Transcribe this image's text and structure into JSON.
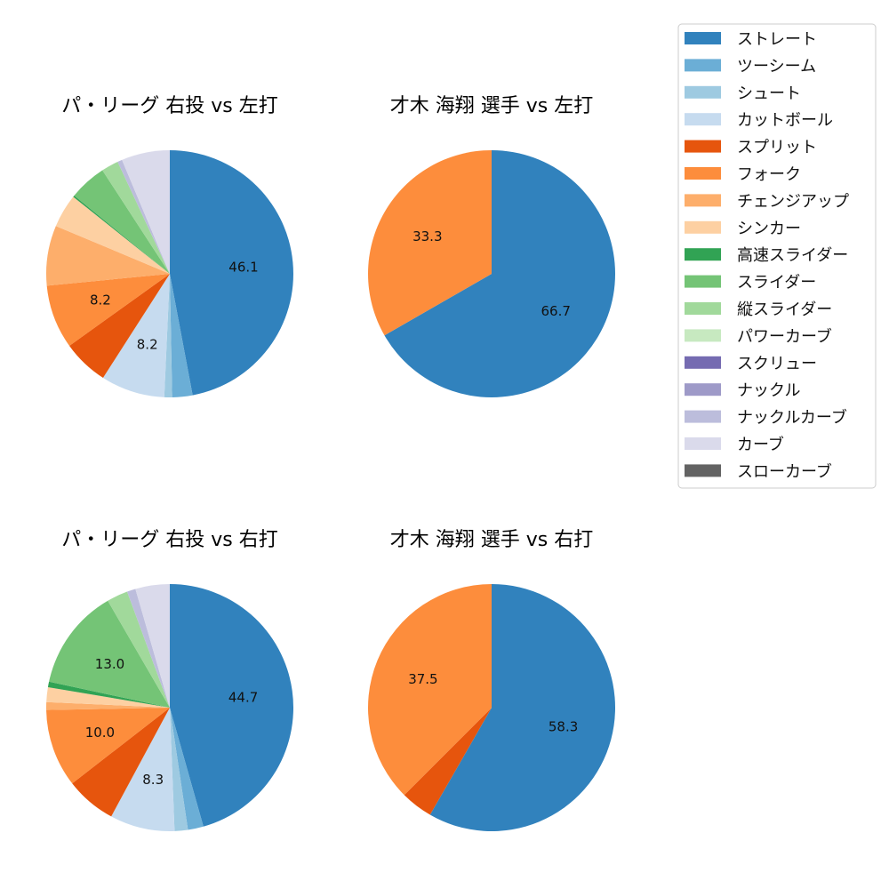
{
  "legend": {
    "items": [
      {
        "name": "ストレート",
        "color": "#3182bd"
      },
      {
        "name": "ツーシーム",
        "color": "#6baed6"
      },
      {
        "name": "シュート",
        "color": "#9ecae1"
      },
      {
        "name": "カットボール",
        "color": "#c6dbef"
      },
      {
        "name": "スプリット",
        "color": "#e6550d"
      },
      {
        "name": "フォーク",
        "color": "#fd8d3c"
      },
      {
        "name": "チェンジアップ",
        "color": "#fdae6b"
      },
      {
        "name": "シンカー",
        "color": "#fdd0a2"
      },
      {
        "name": "高速スライダー",
        "color": "#31a354"
      },
      {
        "name": "スライダー",
        "color": "#74c476"
      },
      {
        "name": "縦スライダー",
        "color": "#a1d99b"
      },
      {
        "name": "パワーカーブ",
        "color": "#c7e9c0"
      },
      {
        "name": "スクリュー",
        "color": "#756bb1"
      },
      {
        "name": "ナックル",
        "color": "#9e9ac8"
      },
      {
        "name": "ナックルカーブ",
        "color": "#bcbddc"
      },
      {
        "name": "カーブ",
        "color": "#dadaeb"
      },
      {
        "name": "スローカーブ",
        "color": "#636363"
      }
    ]
  },
  "chart_data": [
    {
      "type": "pie",
      "title": "パ・リーグ 右投 vs 左打",
      "slices": [
        {
          "name": "ストレート",
          "value": 46.1,
          "label": "46.1"
        },
        {
          "name": "ツーシーム",
          "value": 2.6,
          "label": ""
        },
        {
          "name": "シュート",
          "value": 1.0,
          "label": ""
        },
        {
          "name": "カットボール",
          "value": 8.2,
          "label": "8.2"
        },
        {
          "name": "スプリット",
          "value": 5.9,
          "label": ""
        },
        {
          "name": "フォーク",
          "value": 8.2,
          "label": "8.2"
        },
        {
          "name": "チェンジアップ",
          "value": 7.7,
          "label": ""
        },
        {
          "name": "シンカー",
          "value": 4.3,
          "label": ""
        },
        {
          "name": "高速スライダー",
          "value": 0.2,
          "label": ""
        },
        {
          "name": "スライダー",
          "value": 4.8,
          "label": ""
        },
        {
          "name": "縦スライダー",
          "value": 2.2,
          "label": ""
        },
        {
          "name": "ナックルカーブ",
          "value": 0.6,
          "label": ""
        },
        {
          "name": "カーブ",
          "value": 6.2,
          "label": ""
        }
      ]
    },
    {
      "type": "pie",
      "title": "才木 海翔 選手 vs 左打",
      "slices": [
        {
          "name": "ストレート",
          "value": 66.7,
          "label": "66.7"
        },
        {
          "name": "フォーク",
          "value": 33.3,
          "label": "33.3"
        }
      ]
    },
    {
      "type": "pie",
      "title": "パ・リーグ 右投 vs 右打",
      "slices": [
        {
          "name": "ストレート",
          "value": 44.7,
          "label": "44.7"
        },
        {
          "name": "ツーシーム",
          "value": 2.0,
          "label": ""
        },
        {
          "name": "シュート",
          "value": 1.7,
          "label": ""
        },
        {
          "name": "カットボール",
          "value": 8.3,
          "label": "8.3"
        },
        {
          "name": "スプリット",
          "value": 6.5,
          "label": ""
        },
        {
          "name": "フォーク",
          "value": 10.0,
          "label": "10.0"
        },
        {
          "name": "チェンジアップ",
          "value": 1.0,
          "label": ""
        },
        {
          "name": "シンカー",
          "value": 1.9,
          "label": ""
        },
        {
          "name": "高速スライダー",
          "value": 0.7,
          "label": ""
        },
        {
          "name": "スライダー",
          "value": 13.0,
          "label": "13.0"
        },
        {
          "name": "縦スライダー",
          "value": 2.7,
          "label": ""
        },
        {
          "name": "ナックルカーブ",
          "value": 1.1,
          "label": ""
        },
        {
          "name": "カーブ",
          "value": 4.4,
          "label": ""
        }
      ]
    },
    {
      "type": "pie",
      "title": "才木 海翔 選手 vs 右打",
      "slices": [
        {
          "name": "ストレート",
          "value": 58.3,
          "label": "58.3"
        },
        {
          "name": "スプリット",
          "value": 4.2,
          "label": ""
        },
        {
          "name": "フォーク",
          "value": 37.5,
          "label": "37.5"
        }
      ]
    }
  ]
}
